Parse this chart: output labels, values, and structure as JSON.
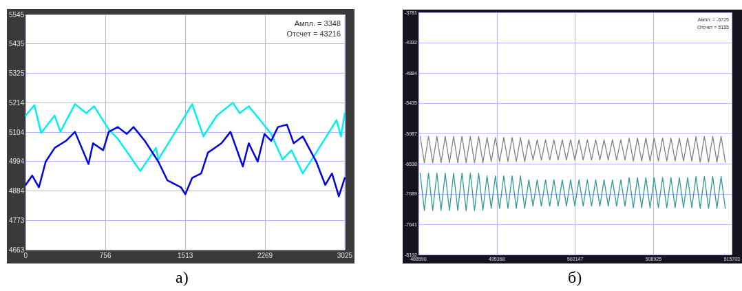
{
  "chart_data": [
    {
      "type": "line",
      "xlim": [
        0,
        3025
      ],
      "xticks": [
        0,
        756,
        1513,
        2269,
        3025
      ],
      "ylim": [
        4663,
        5545
      ],
      "yticks": [
        4663,
        4773,
        4884,
        4994,
        5104,
        5214,
        5325,
        5435,
        5545
      ],
      "grid": true,
      "marker": "none",
      "line_style": "solid",
      "annotations": [
        "Ампл. = 3348",
        "Отсчет = 43216",
        "а)"
      ],
      "series": [
        {
          "color": "#00f0f0",
          "x": [
            0,
            83,
            147,
            275,
            329,
            468,
            575,
            649,
            788,
            874,
            1087,
            1236,
            1258,
            1514,
            1578,
            1685,
            1813,
            1965,
            2029,
            2115,
            2222,
            2328,
            2435,
            2520,
            2627,
            2755,
            2947,
            2990,
            3025
          ],
          "values": [
            5166,
            5205,
            5101,
            5166,
            5105,
            5209,
            5175,
            5201,
            5114,
            5079,
            4958,
            5045,
            5001,
            5166,
            5209,
            5088,
            5166,
            5214,
            5175,
            5201,
            5149,
            5097,
            5001,
            5036,
            4949,
            5027,
            5149,
            5088,
            5175
          ]
        },
        {
          "color": "#0000e6",
          "x": [
            0,
            62,
            126,
            190,
            276,
            382,
            468,
            596,
            639,
            735,
            788,
            874,
            959,
            1023,
            1130,
            1258,
            1344,
            1472,
            1514,
            1578,
            1664,
            1728,
            1856,
            1942,
            2059,
            2115,
            2200,
            2264,
            2328,
            2392,
            2477,
            2541,
            2627,
            2755,
            2840,
            2904,
            2969,
            3025
          ],
          "values": [
            4906,
            4941,
            4897,
            4993,
            5045,
            5071,
            5105,
            4984,
            5062,
            5036,
            5105,
            5123,
            5097,
            5123,
            5071,
            4993,
            4923,
            4897,
            4871,
            4932,
            4949,
            5027,
            5062,
            5105,
            4975,
            5062,
            4993,
            5097,
            5071,
            5123,
            5132,
            5062,
            5088,
            4993,
            4906,
            4949,
            4863,
            4932
          ]
        }
      ]
    },
    {
      "type": "line",
      "xlim": [
        488590,
        515703
      ],
      "xticks": [
        488590,
        495368,
        502147,
        508925,
        515703
      ],
      "ylim": [
        -8192,
        -3781
      ],
      "yticks": [
        -8192,
        -7641,
        -7089,
        -6538,
        -5987,
        -5435,
        -4884,
        -4332,
        -3781
      ],
      "grid": true,
      "marker": "none",
      "line_style": "solid",
      "annotations": [
        "Ампл. = -6725",
        "Отсчет = 5155",
        "б)"
      ],
      "x": [
        488741,
        489103,
        489464,
        489826,
        490187,
        490549,
        490910,
        491272,
        491633,
        491995,
        492356,
        492718,
        493079,
        493441,
        493802,
        494164,
        494525,
        494887,
        495248,
        495610,
        495971,
        496333,
        496694,
        497056,
        497417,
        497779,
        498140,
        498502,
        498863,
        499225,
        499586,
        499948,
        500309,
        500671,
        501032,
        501394,
        501755,
        502117,
        502478,
        502840,
        503201,
        503563,
        503924,
        504286,
        504647,
        505009,
        505370,
        505732,
        506093,
        506455,
        506816,
        507178,
        507539,
        507901,
        508262,
        508624,
        508985,
        509347,
        509708,
        510070,
        510431,
        510793,
        511154,
        511516,
        511877,
        512239,
        512600,
        512962,
        513323,
        513685,
        514046,
        514408,
        514769,
        515131
      ],
      "series": [
        {
          "color": "#808080",
          "values": [
            -6040,
            -6520,
            -6040,
            -6520,
            -6040,
            -6520,
            -6040,
            -6520,
            -6040,
            -6520,
            -6040,
            -6520,
            -6040,
            -6520,
            -6040,
            -6520,
            -6060,
            -6500,
            -6060,
            -6500,
            -6060,
            -6500,
            -6060,
            -6500,
            -6060,
            -6500,
            -6100,
            -6470,
            -6100,
            -6470,
            -6100,
            -6470,
            -6100,
            -6470,
            -6100,
            -6470,
            -6100,
            -6470,
            -6100,
            -6470,
            -6100,
            -6470,
            -6100,
            -6470,
            -6100,
            -6470,
            -6100,
            -6470,
            -6100,
            -6470,
            -6070,
            -6490,
            -6070,
            -6490,
            -6070,
            -6490,
            -6070,
            -6490,
            -6070,
            -6490,
            -6070,
            -6490,
            -6070,
            -6490,
            -6070,
            -6490,
            -6040,
            -6510,
            -6040,
            -6510,
            -6040,
            -6510,
            -6040,
            -6510
          ]
        },
        {
          "color": "#2e9a90",
          "values": [
            -6710,
            -7390,
            -6710,
            -7390,
            -6710,
            -7390,
            -6710,
            -7390,
            -6710,
            -7390,
            -6710,
            -7390,
            -6710,
            -7390,
            -6710,
            -7390,
            -6760,
            -7350,
            -6760,
            -7350,
            -6760,
            -7350,
            -6760,
            -7350,
            -6760,
            -7350,
            -6830,
            -7310,
            -6830,
            -7310,
            -6830,
            -7310,
            -6830,
            -7310,
            -6830,
            -7310,
            -6830,
            -7310,
            -6830,
            -7310,
            -6830,
            -7310,
            -6830,
            -7310,
            -6830,
            -7310,
            -6830,
            -7310,
            -6830,
            -7310,
            -6790,
            -7340,
            -6790,
            -7340,
            -6790,
            -7340,
            -6790,
            -7340,
            -6790,
            -7340,
            -6790,
            -7340,
            -6790,
            -7340,
            -6790,
            -7340,
            -6770,
            -7350,
            -6770,
            -7350,
            -6770,
            -7350,
            -6770,
            -7350
          ]
        }
      ]
    }
  ]
}
